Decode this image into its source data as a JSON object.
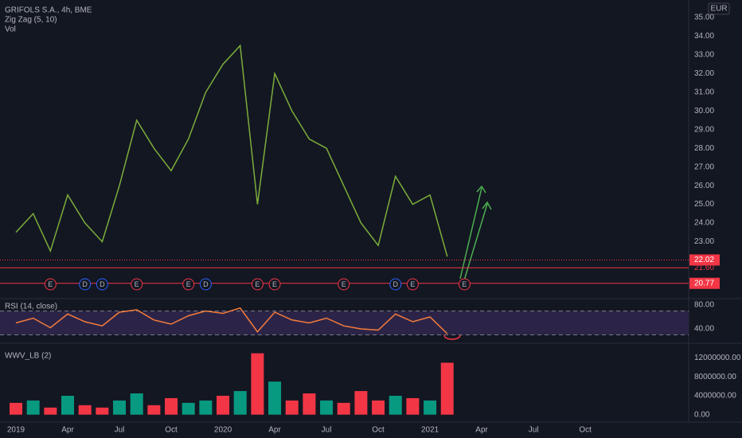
{
  "chart_data": [
    {
      "type": "line",
      "title": "GRIFOLS S.A., 4h, BME",
      "indicators": [
        "Zig Zag (5, 10)",
        "Vol"
      ],
      "currency": "EUR",
      "x": [
        "2019-01",
        "2019-02",
        "2019-03",
        "2019-04",
        "2019-05",
        "2019-06",
        "2019-07",
        "2019-08",
        "2019-09",
        "2019-10",
        "2019-11",
        "2019-12",
        "2020-01",
        "2020-02",
        "2020-03",
        "2020-04",
        "2020-05",
        "2020-06",
        "2020-07",
        "2020-08",
        "2020-09",
        "2020-10",
        "2020-11",
        "2020-12",
        "2021-01",
        "2021-02"
      ],
      "values": [
        23.5,
        24.5,
        22.5,
        25.5,
        24,
        23,
        26,
        29.5,
        28,
        26.8,
        28.5,
        31,
        32.5,
        33.5,
        25,
        32,
        30,
        28.5,
        28,
        26,
        24,
        22.8,
        26.5,
        25,
        25.5,
        22.2
      ],
      "color": "#7cae3a",
      "grid": false,
      "ylim": [
        19.95,
        35.94
      ],
      "yticks": [
        {
          "value": 23,
          "label": "23.00"
        },
        {
          "value": 24,
          "label": "24.00"
        },
        {
          "value": 25,
          "label": "25.00"
        },
        {
          "value": 26,
          "label": "26.00"
        },
        {
          "value": 27,
          "label": "27.00"
        },
        {
          "value": 28,
          "label": "28.00"
        },
        {
          "value": 29,
          "label": "29.00"
        },
        {
          "value": 30,
          "label": "30.00"
        },
        {
          "value": 31,
          "label": "31.00"
        },
        {
          "value": 32,
          "label": "32.00"
        },
        {
          "value": 33,
          "label": "33.00"
        },
        {
          "value": 34,
          "label": "34.00"
        },
        {
          "value": 35,
          "label": "35.00"
        }
      ],
      "hlines": [
        {
          "value": 22.02,
          "label": "22.02",
          "style": "dotted",
          "filled": true
        },
        {
          "value": 21.6,
          "label": "21.60",
          "style": "solid",
          "filled": false
        },
        {
          "value": 20.77,
          "label": "20.77",
          "style": "solid",
          "filled": true
        }
      ],
      "events": [
        {
          "label": "E",
          "x": "2019-03"
        },
        {
          "label": "D",
          "x": "2019-05"
        },
        {
          "label": "D",
          "x": "2019-06"
        },
        {
          "label": "E",
          "x": "2019-08"
        },
        {
          "label": "E",
          "x": "2019-11"
        },
        {
          "label": "D",
          "x": "2019-12"
        },
        {
          "label": "E",
          "x": "2020-03"
        },
        {
          "label": "E",
          "x": "2020-04"
        },
        {
          "label": "E",
          "x": "2020-08"
        },
        {
          "label": "D",
          "x": "2020-11"
        },
        {
          "label": "E",
          "x": "2020-12"
        },
        {
          "label": "E",
          "x": "2021-03"
        }
      ]
    },
    {
      "type": "line",
      "title": "RSI (14, close)",
      "x": [
        "2019-01",
        "2019-02",
        "2019-03",
        "2019-04",
        "2019-05",
        "2019-06",
        "2019-07",
        "2019-08",
        "2019-09",
        "2019-10",
        "2019-11",
        "2019-12",
        "2020-01",
        "2020-02",
        "2020-03",
        "2020-04",
        "2020-05",
        "2020-06",
        "2020-07",
        "2020-08",
        "2020-09",
        "2020-10",
        "2020-11",
        "2020-12",
        "2021-01",
        "2021-02"
      ],
      "values": [
        50,
        58,
        42,
        65,
        52,
        45,
        68,
        72,
        55,
        48,
        62,
        70,
        66,
        75,
        35,
        68,
        55,
        50,
        58,
        45,
        40,
        38,
        65,
        52,
        60,
        32
      ],
      "color": "#f57c3b",
      "levels": [
        30,
        70
      ],
      "band_color": "#2c2448",
      "ylim": [
        17.3,
        90.7
      ],
      "yticks": [
        {
          "value": 40,
          "label": "40.00"
        },
        {
          "value": 80,
          "label": "80.00"
        }
      ]
    },
    {
      "type": "bar",
      "title": "WWV_LB (2)",
      "x": [
        "2019-01",
        "2019-02",
        "2019-03",
        "2019-04",
        "2019-05",
        "2019-06",
        "2019-07",
        "2019-08",
        "2019-09",
        "2019-10",
        "2019-11",
        "2019-12",
        "2020-01",
        "2020-02",
        "2020-03",
        "2020-04",
        "2020-05",
        "2020-06",
        "2020-07",
        "2020-08",
        "2020-09",
        "2020-10",
        "2020-11",
        "2020-12",
        "2021-01",
        "2021-02"
      ],
      "values": [
        2500000,
        3000000,
        1500000,
        4000000,
        2000000,
        1500000,
        3000000,
        4500000,
        2000000,
        3500000,
        2500000,
        3000000,
        4000000,
        5000000,
        13000000,
        7000000,
        3000000,
        4500000,
        3000000,
        2500000,
        5000000,
        3000000,
        4000000,
        3500000,
        3000000,
        11000000
      ],
      "colors": [
        "#f23645",
        "#089981",
        "#f23645",
        "#089981",
        "#f23645",
        "#f23645",
        "#089981",
        "#089981",
        "#f23645",
        "#f23645",
        "#089981",
        "#089981",
        "#f23645",
        "#089981",
        "#f23645",
        "#089981",
        "#f23645",
        "#f23645",
        "#089981",
        "#f23645",
        "#f23645",
        "#f23645",
        "#089981",
        "#f23645",
        "#089981",
        "#f23645"
      ],
      "ylim": [
        -1570000,
        14960000
      ],
      "yticks": [
        {
          "value": 0,
          "label": "0.00"
        },
        {
          "value": 4000000,
          "label": "4000000.00"
        },
        {
          "value": 8000000,
          "label": "8000000.00"
        },
        {
          "value": 12000000,
          "label": "12000000.00"
        }
      ],
      "xticks": [
        {
          "value": "2019-01",
          "label": "2019"
        },
        {
          "value": "2019-04",
          "label": "Apr"
        },
        {
          "value": "2019-07",
          "label": "Jul"
        },
        {
          "value": "2019-10",
          "label": "Oct"
        },
        {
          "value": "2020-01",
          "label": "2020"
        },
        {
          "value": "2020-04",
          "label": "Apr"
        },
        {
          "value": "2020-07",
          "label": "Jul"
        },
        {
          "value": "2020-10",
          "label": "Oct"
        },
        {
          "value": "2021-01",
          "label": "2021"
        },
        {
          "value": "2021-04",
          "label": "Apr"
        },
        {
          "value": "2021-07",
          "label": "Jul"
        },
        {
          "value": "2021-10",
          "label": "Oct"
        }
      ]
    }
  ]
}
